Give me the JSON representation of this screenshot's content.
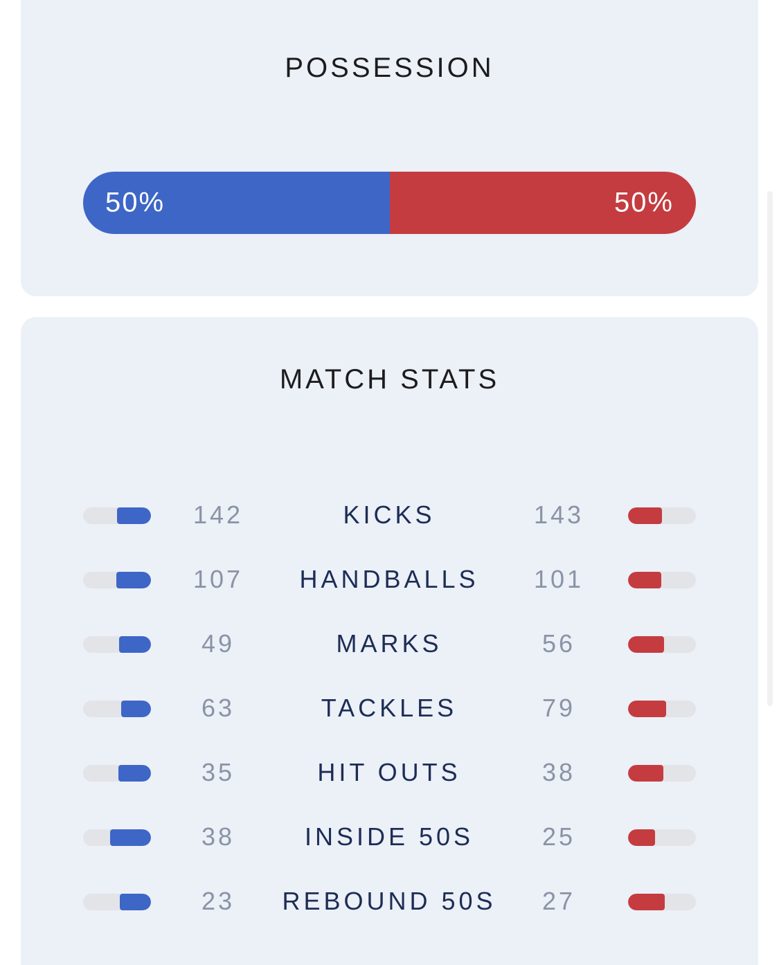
{
  "colors": {
    "home": "#3d66c6",
    "away": "#c43c40",
    "card_bg": "#ecf0f7",
    "track": "#e3e4e8"
  },
  "possession": {
    "title": "POSSESSION",
    "home_percent": 50,
    "away_percent": 50,
    "home_label": "50%",
    "away_label": "50%"
  },
  "match_stats": {
    "title": "MATCH STATS",
    "rows": [
      {
        "label": "KICKS",
        "home": "142",
        "away": "143",
        "home_share": 0.5,
        "away_share": 0.5
      },
      {
        "label": "HANDBALLS",
        "home": "107",
        "away": "101",
        "home_share": 0.51,
        "away_share": 0.49
      },
      {
        "label": "MARKS",
        "home": "49",
        "away": "56",
        "home_share": 0.47,
        "away_share": 0.53
      },
      {
        "label": "TACKLES",
        "home": "63",
        "away": "79",
        "home_share": 0.44,
        "away_share": 0.56
      },
      {
        "label": "HIT OUTS",
        "home": "35",
        "away": "38",
        "home_share": 0.48,
        "away_share": 0.52
      },
      {
        "label": "INSIDE 50S",
        "home": "38",
        "away": "25",
        "home_share": 0.6,
        "away_share": 0.4
      },
      {
        "label": "REBOUND 50S",
        "home": "23",
        "away": "27",
        "home_share": 0.46,
        "away_share": 0.54
      }
    ]
  }
}
